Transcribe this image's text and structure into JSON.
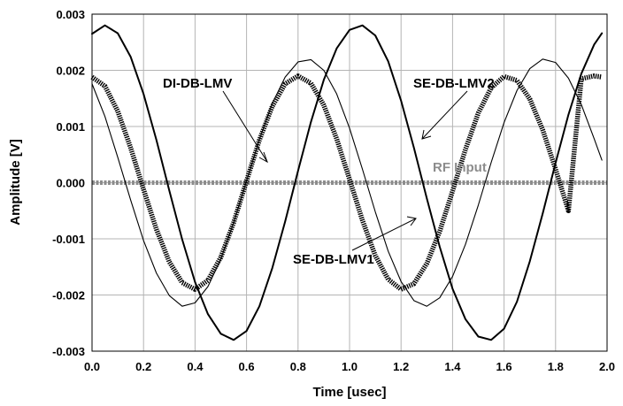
{
  "chart_data": {
    "type": "line",
    "title": "",
    "xlabel": "Time [usec]",
    "ylabel": "Amplitude [V]",
    "xlim": [
      0.0,
      2.0
    ],
    "ylim": [
      -0.003,
      0.003
    ],
    "x_ticks": [
      "0.0",
      "0.2",
      "0.4",
      "0.6",
      "0.8",
      "1.0",
      "1.2",
      "1.4",
      "1.6",
      "1.8",
      "2.0"
    ],
    "y_ticks": [
      "0.003",
      "0.002",
      "0.001",
      "0.000",
      "-0.001",
      "-0.002",
      "-0.003"
    ],
    "grid": true,
    "series": [
      {
        "name": "DI-DB-LMV",
        "color": "#000000",
        "style": "thin",
        "x": [
          0.0,
          0.05,
          0.1,
          0.15,
          0.2,
          0.25,
          0.3,
          0.35,
          0.4,
          0.45,
          0.5,
          0.55,
          0.6,
          0.65,
          0.7,
          0.75,
          0.8,
          0.85,
          0.9,
          0.95,
          1.0,
          1.05,
          1.1,
          1.15,
          1.2,
          1.25,
          1.3,
          1.35,
          1.4,
          1.45,
          1.5,
          1.55,
          1.6,
          1.65,
          1.7,
          1.75,
          1.8,
          1.85,
          1.9,
          1.95,
          1.98
        ],
        "y": [
          0.00176,
          0.00118,
          0.00045,
          -0.00031,
          -0.00103,
          -0.00161,
          -0.00201,
          -0.0022,
          -0.00214,
          -0.00185,
          -0.00136,
          -0.00071,
          3e-05,
          0.00077,
          0.00141,
          0.00188,
          0.00215,
          0.00219,
          0.002,
          0.00158,
          0.00097,
          0.00024,
          -0.00052,
          -0.00122,
          -0.00176,
          -0.0021,
          -0.0022,
          -0.00205,
          -0.00167,
          -0.0011,
          -0.0004,
          0.00036,
          0.00107,
          0.00164,
          0.00203,
          0.0022,
          0.00214,
          0.00186,
          0.00139,
          0.00078,
          0.0004
        ]
      },
      {
        "name": "SE-DB-LMV2",
        "color": "#000000",
        "style": "medium",
        "x": [
          0.0,
          0.05,
          0.1,
          0.15,
          0.2,
          0.25,
          0.3,
          0.35,
          0.4,
          0.45,
          0.5,
          0.55,
          0.6,
          0.65,
          0.7,
          0.75,
          0.8,
          0.85,
          0.9,
          0.95,
          1.0,
          1.05,
          1.1,
          1.15,
          1.2,
          1.25,
          1.3,
          1.35,
          1.4,
          1.45,
          1.5,
          1.55,
          1.6,
          1.65,
          1.7,
          1.75,
          1.8,
          1.85,
          1.9,
          1.95,
          1.98
        ],
        "y": [
          0.00265,
          0.0028,
          0.00266,
          0.00224,
          0.00158,
          0.00076,
          -0.00014,
          -0.00101,
          -0.00177,
          -0.00234,
          -0.00269,
          -0.0028,
          -0.00264,
          -0.0022,
          -0.00152,
          -0.00069,
          0.00021,
          0.00108,
          0.00183,
          0.00239,
          0.00272,
          0.0028,
          0.00262,
          0.00216,
          0.00146,
          0.00062,
          -0.00028,
          -0.00114,
          -0.00189,
          -0.00243,
          -0.00274,
          -0.0028,
          -0.0026,
          -0.00212,
          -0.0014,
          -0.00055,
          0.00035,
          0.00121,
          0.00194,
          0.00246,
          0.00266
        ]
      },
      {
        "name": "SE-DB-LMV1",
        "color": "#000000",
        "style": "thick",
        "x": [
          0.0,
          0.05,
          0.1,
          0.15,
          0.2,
          0.25,
          0.3,
          0.35,
          0.4,
          0.45,
          0.5,
          0.55,
          0.6,
          0.65,
          0.7,
          0.75,
          0.8,
          0.85,
          0.9,
          0.95,
          1.0,
          1.05,
          1.1,
          1.15,
          1.2,
          1.25,
          1.3,
          1.35,
          1.4,
          1.45,
          1.5,
          1.55,
          1.6,
          1.65,
          1.7,
          1.75,
          1.8,
          1.85,
          1.9,
          1.95,
          1.98
        ],
        "y": [
          0.00188,
          0.00172,
          0.00127,
          0.00062,
          -0.00012,
          -0.00083,
          -0.00141,
          -0.00178,
          -0.0019,
          -0.00174,
          -0.00133,
          -0.00071,
          3e-05,
          0.00076,
          0.00136,
          0.00176,
          0.0019,
          0.00177,
          0.00138,
          0.00078,
          6e-05,
          -0.00067,
          -0.0013,
          -0.00172,
          -0.0019,
          -0.0018,
          -0.00144,
          -0.00087,
          -0.00015,
          0.00059,
          0.00124,
          0.00169,
          0.00189,
          0.00182,
          0.00149,
          0.00094,
          0.00024,
          -0.0005,
          0.00185,
          0.0019,
          0.00188
        ]
      },
      {
        "name": "RF Input",
        "color": "#8c8c8c",
        "style": "dotted-thick",
        "x": [
          0.0,
          2.0
        ],
        "y": [
          0.0,
          0.0
        ]
      }
    ],
    "annotations": [
      {
        "text": "DI-DB-LMV",
        "series": "DI-DB-LMV",
        "color": "#000000"
      },
      {
        "text": "SE-DB-LMV2",
        "series": "SE-DB-LMV2",
        "color": "#000000"
      },
      {
        "text": "SE-DB-LMV1",
        "series": "SE-DB-LMV1",
        "color": "#000000"
      },
      {
        "text": "RF Input",
        "series": "RF Input",
        "color": "#8c8c8c"
      }
    ]
  }
}
